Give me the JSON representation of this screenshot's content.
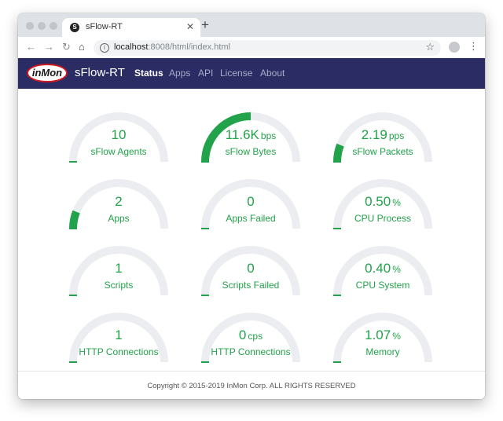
{
  "browser": {
    "tab_title": "sFlow-RT",
    "tab_favicon": "S",
    "url_host": "localhost",
    "url_path": ":8008/html/index.html"
  },
  "navbar": {
    "logo_text": "inMon",
    "brand": "sFlow-RT",
    "links": [
      "Status",
      "Apps",
      "API",
      "License",
      "About"
    ]
  },
  "colors": {
    "accent": "#22a24a",
    "track": "#ebedf0",
    "navbar": "#2b2c64"
  },
  "gauges": [
    {
      "value": "10",
      "unit": "",
      "label": "sFlow Agents",
      "level": 0.0
    },
    {
      "value": "11.6K",
      "unit": "bps",
      "label": "sFlow Bytes",
      "level": 0.5
    },
    {
      "value": "2.19",
      "unit": "pps",
      "label": "sFlow Packets",
      "level": 0.12
    },
    {
      "value": "2",
      "unit": "",
      "label": "Apps",
      "level": 0.12
    },
    {
      "value": "0",
      "unit": "",
      "label": "Apps Failed",
      "level": 0.0
    },
    {
      "value": "0.50",
      "unit": "%",
      "label": "CPU Process",
      "level": 0.0
    },
    {
      "value": "1",
      "unit": "",
      "label": "Scripts",
      "level": 0.0
    },
    {
      "value": "0",
      "unit": "",
      "label": "Scripts Failed",
      "level": 0.0
    },
    {
      "value": "0.40",
      "unit": "%",
      "label": "CPU System",
      "level": 0.0
    },
    {
      "value": "1",
      "unit": "",
      "label": "HTTP Connections",
      "level": 0.0
    },
    {
      "value": "0",
      "unit": "cps",
      "label": "HTTP Connections",
      "level": 0.0
    },
    {
      "value": "1.07",
      "unit": "%",
      "label": "Memory",
      "level": 0.0
    }
  ],
  "footer": {
    "copyright": "Copyright © 2015-2019 InMon Corp. ALL RIGHTS RESERVED"
  }
}
